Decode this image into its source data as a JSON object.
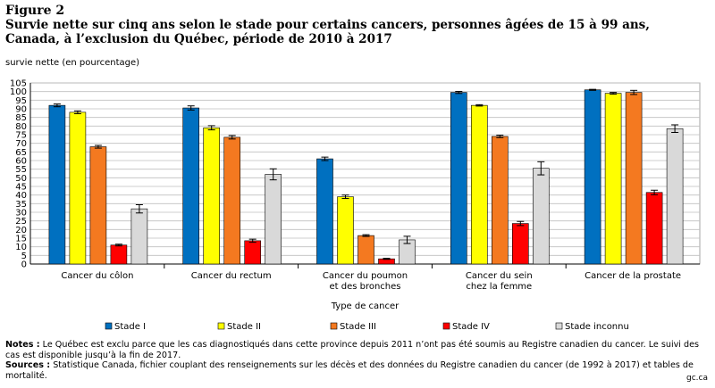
{
  "figure": {
    "label": "Figure 2",
    "title": "Survie nette sur cinq  ans selon le stade pour certains cancers, personnes âgées de 15 à 99 ans, Canada, à l’exclusion  du Québec, période de 2010 à 2017"
  },
  "notes": {
    "notes_label": "Notes :",
    "notes_text": " Le Québec est exclu parce que les cas diagnostiqués dans cette province depuis 2011 n’ont pas été soumis au Registre canadien du cancer. Le suivi des cas est disponible jusqu’à la fin de 2017.",
    "sources_label": "Sources :",
    "sources_text": " Statistique Canada, fichier couplant des renseignements sur les décès et des données du Registre canadien du cancer (de 1992 à 2017) et tables de mortalité."
  },
  "logo": "gc.ca",
  "chart_data": {
    "type": "bar",
    "title": "",
    "ylabel": "survie nette (en pourcentage)",
    "xlabel": "Type de cancer",
    "ylim": [
      0,
      105
    ],
    "ytick_step": 5,
    "grid": "horizontal",
    "legend_position": "bottom",
    "categories": [
      [
        "Cancer du côlon"
      ],
      [
        "Cancer du rectum"
      ],
      [
        "Cancer du poumon",
        "et des bronches"
      ],
      [
        "Cancer du sein",
        "chez la femme"
      ],
      [
        "Cancer de la prostate"
      ]
    ],
    "series": [
      {
        "name": "Stade I",
        "color": "#0070c0",
        "values": [
          92,
          90.5,
          61,
          99.5,
          101
        ],
        "err": [
          0.8,
          1.2,
          1.0,
          0.6,
          0.3
        ]
      },
      {
        "name": "Stade II",
        "color": "#ffff00",
        "values": [
          88,
          79,
          39,
          92,
          99
        ],
        "err": [
          0.8,
          1.2,
          1.0,
          0.4,
          0.5
        ]
      },
      {
        "name": "Stade III",
        "color": "#f47920",
        "values": [
          68,
          73.5,
          16.5,
          74,
          99.5
        ],
        "err": [
          0.8,
          1.0,
          0.5,
          0.7,
          1.2
        ]
      },
      {
        "name": "Stade IV",
        "color": "#ff0000",
        "values": [
          11,
          13.5,
          3,
          23.5,
          41.5
        ],
        "err": [
          0.5,
          0.9,
          0.3,
          1.2,
          1.3
        ]
      },
      {
        "name": "Stade inconnu",
        "color": "#d9d9d9",
        "values": [
          32,
          52,
          14,
          55.5,
          78.5
        ],
        "err": [
          2.4,
          3.2,
          2.1,
          3.8,
          2.2
        ]
      }
    ]
  }
}
